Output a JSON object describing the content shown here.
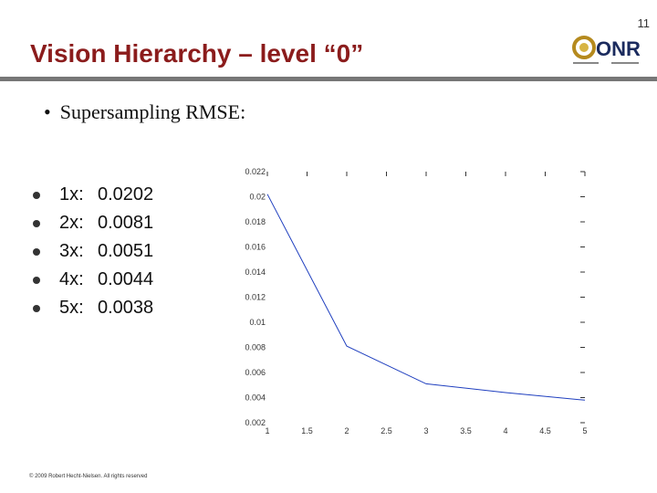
{
  "slide": {
    "page_number": "11",
    "title": "Vision Hierarchy – level “0”",
    "bullet": "Supersampling RMSE:",
    "bullet_symbol": "•",
    "results": [
      {
        "label": "1x:",
        "value": "0.0202"
      },
      {
        "label": "2x:",
        "value": "0.0081"
      },
      {
        "label": "3x:",
        "value": "0.0051"
      },
      {
        "label": "4x:",
        "value": "0.0044"
      },
      {
        "label": "5x:",
        "value": "0.0038"
      }
    ],
    "copyright": "© 2009 Robert Hecht-Nielsen. All rights reserved",
    "logo": {
      "text": "ONR",
      "icon": "onr-logo-icon"
    }
  },
  "colors": {
    "title": "#8b1c1c",
    "line": "#1f3fbf",
    "rule": "#777777"
  },
  "chart_data": {
    "type": "line",
    "title": "",
    "xlabel": "",
    "ylabel": "",
    "x": [
      1,
      2,
      3,
      4,
      5
    ],
    "series": [
      {
        "values": [
          0.0202,
          0.0081,
          0.0051,
          0.0044,
          0.0038
        ]
      }
    ],
    "xlim": [
      1,
      5
    ],
    "ylim": [
      0.002,
      0.022
    ],
    "xticks": [
      "1",
      "1.5",
      "2",
      "2.5",
      "3",
      "3.5",
      "4",
      "4.5",
      "5"
    ],
    "yticks": [
      "0.002",
      "0.004",
      "0.006",
      "0.008",
      "0.01",
      "0.012",
      "0.014",
      "0.016",
      "0.018",
      "0.02",
      "0.022"
    ],
    "grid": false
  }
}
